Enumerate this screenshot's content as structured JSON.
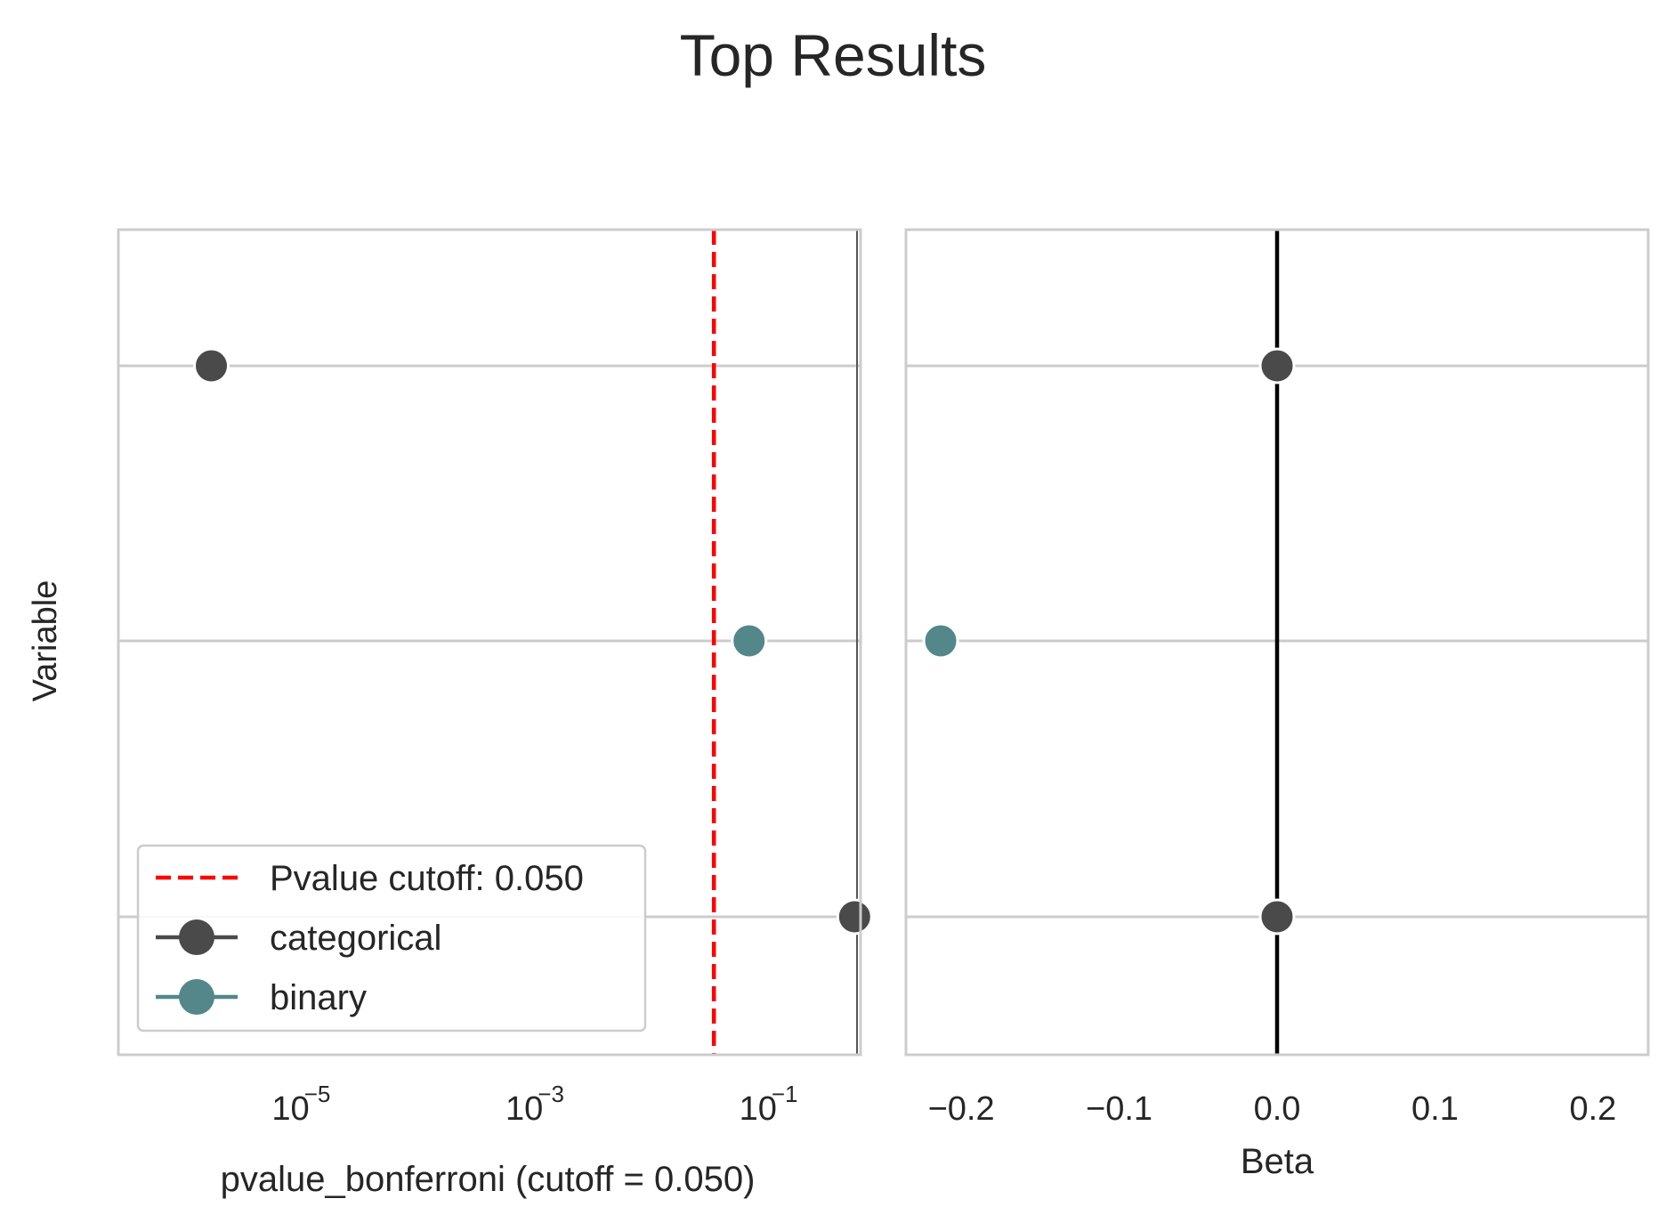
{
  "figure": {
    "title": "Top Results",
    "ylabel": "Variable"
  },
  "colors": {
    "categorical": "#4a4a4a",
    "binary": "#53878a",
    "cutoff_line": "#ff0000",
    "zero_line": "#000000",
    "grid": "#cccccc",
    "frame": "#cccccc"
  },
  "chart_data": [
    {
      "type": "scatter",
      "panel": "left",
      "xlabel": "pvalue_bonferroni (cutoff = 0.050)",
      "xscale": "log",
      "xlim": [
        4e-07,
        0.9
      ],
      "xticks": [
        {
          "value": 1e-05,
          "base": "10",
          "exp": "−5"
        },
        {
          "value": 0.001,
          "base": "10",
          "exp": "−3"
        },
        {
          "value": 0.1,
          "base": "10",
          "exp": "−1"
        }
      ],
      "rows": 3,
      "points": [
        {
          "row": 0,
          "x": 2.5e-06,
          "group": "categorical"
        },
        {
          "row": 1,
          "x": 0.1,
          "group": "binary"
        },
        {
          "row": 2,
          "x": 0.8,
          "group": "categorical"
        }
      ],
      "cutoff": 0.05,
      "grid": "horizontal",
      "legend": {
        "placement": "lower-left",
        "entries": [
          {
            "label": "Pvalue cutoff: 0.050",
            "kind": "dashed-line",
            "color": "#ff0000"
          },
          {
            "label": "categorical",
            "kind": "marker-line",
            "color": "#4a4a4a"
          },
          {
            "label": "binary",
            "kind": "marker-line",
            "color": "#53878a"
          }
        ]
      }
    },
    {
      "type": "scatter",
      "panel": "right",
      "xlabel": "Beta",
      "xlim": [
        -0.235,
        0.235
      ],
      "xticks": [
        {
          "value": -0.2,
          "label": "−0.2"
        },
        {
          "value": -0.1,
          "label": "−0.1"
        },
        {
          "value": 0.0,
          "label": "0.0"
        },
        {
          "value": 0.1,
          "label": "0.1"
        },
        {
          "value": 0.2,
          "label": "0.2"
        }
      ],
      "rows": 3,
      "points": [
        {
          "row": 0,
          "x": 0.0,
          "group": "categorical"
        },
        {
          "row": 1,
          "x": -0.213,
          "group": "binary"
        },
        {
          "row": 2,
          "x": 0.0,
          "group": "categorical"
        }
      ],
      "reference_line": 0.0,
      "grid": "horizontal"
    }
  ]
}
